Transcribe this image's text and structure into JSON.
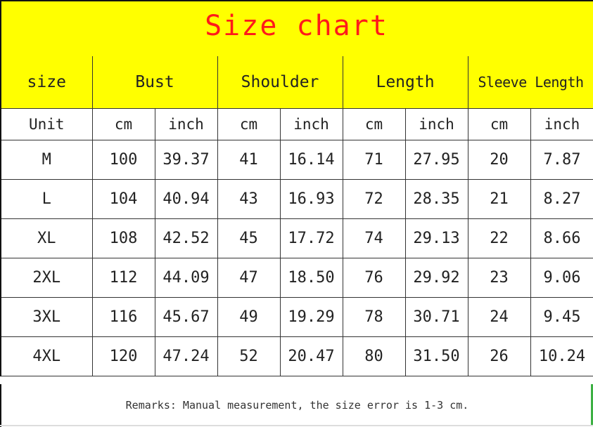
{
  "title": "Size chart",
  "colors": {
    "header_bg": "#ffff00",
    "title": "#ff1a1a"
  },
  "header": [
    "size",
    "Bust",
    "Shoulder",
    "Length",
    "Sleeve Length"
  ],
  "units": [
    "Unit",
    "cm",
    "inch",
    "cm",
    "inch",
    "cm",
    "inch",
    "cm",
    "inch"
  ],
  "rows": [
    [
      "M",
      "100",
      "39.37",
      "41",
      "16.14",
      "71",
      "27.95",
      "20",
      "7.87"
    ],
    [
      "L",
      "104",
      "40.94",
      "43",
      "16.93",
      "72",
      "28.35",
      "21",
      "8.27"
    ],
    [
      "XL",
      "108",
      "42.52",
      "45",
      "17.72",
      "74",
      "29.13",
      "22",
      "8.66"
    ],
    [
      "2XL",
      "112",
      "44.09",
      "47",
      "18.50",
      "76",
      "29.92",
      "23",
      "9.06"
    ],
    [
      "3XL",
      "116",
      "45.67",
      "49",
      "19.29",
      "78",
      "30.71",
      "24",
      "9.45"
    ],
    [
      "4XL",
      "120",
      "47.24",
      "52",
      "20.47",
      "80",
      "31.50",
      "26",
      "10.24"
    ]
  ],
  "remarks": "Remarks: Manual measurement, the size error is 1-3 cm."
}
